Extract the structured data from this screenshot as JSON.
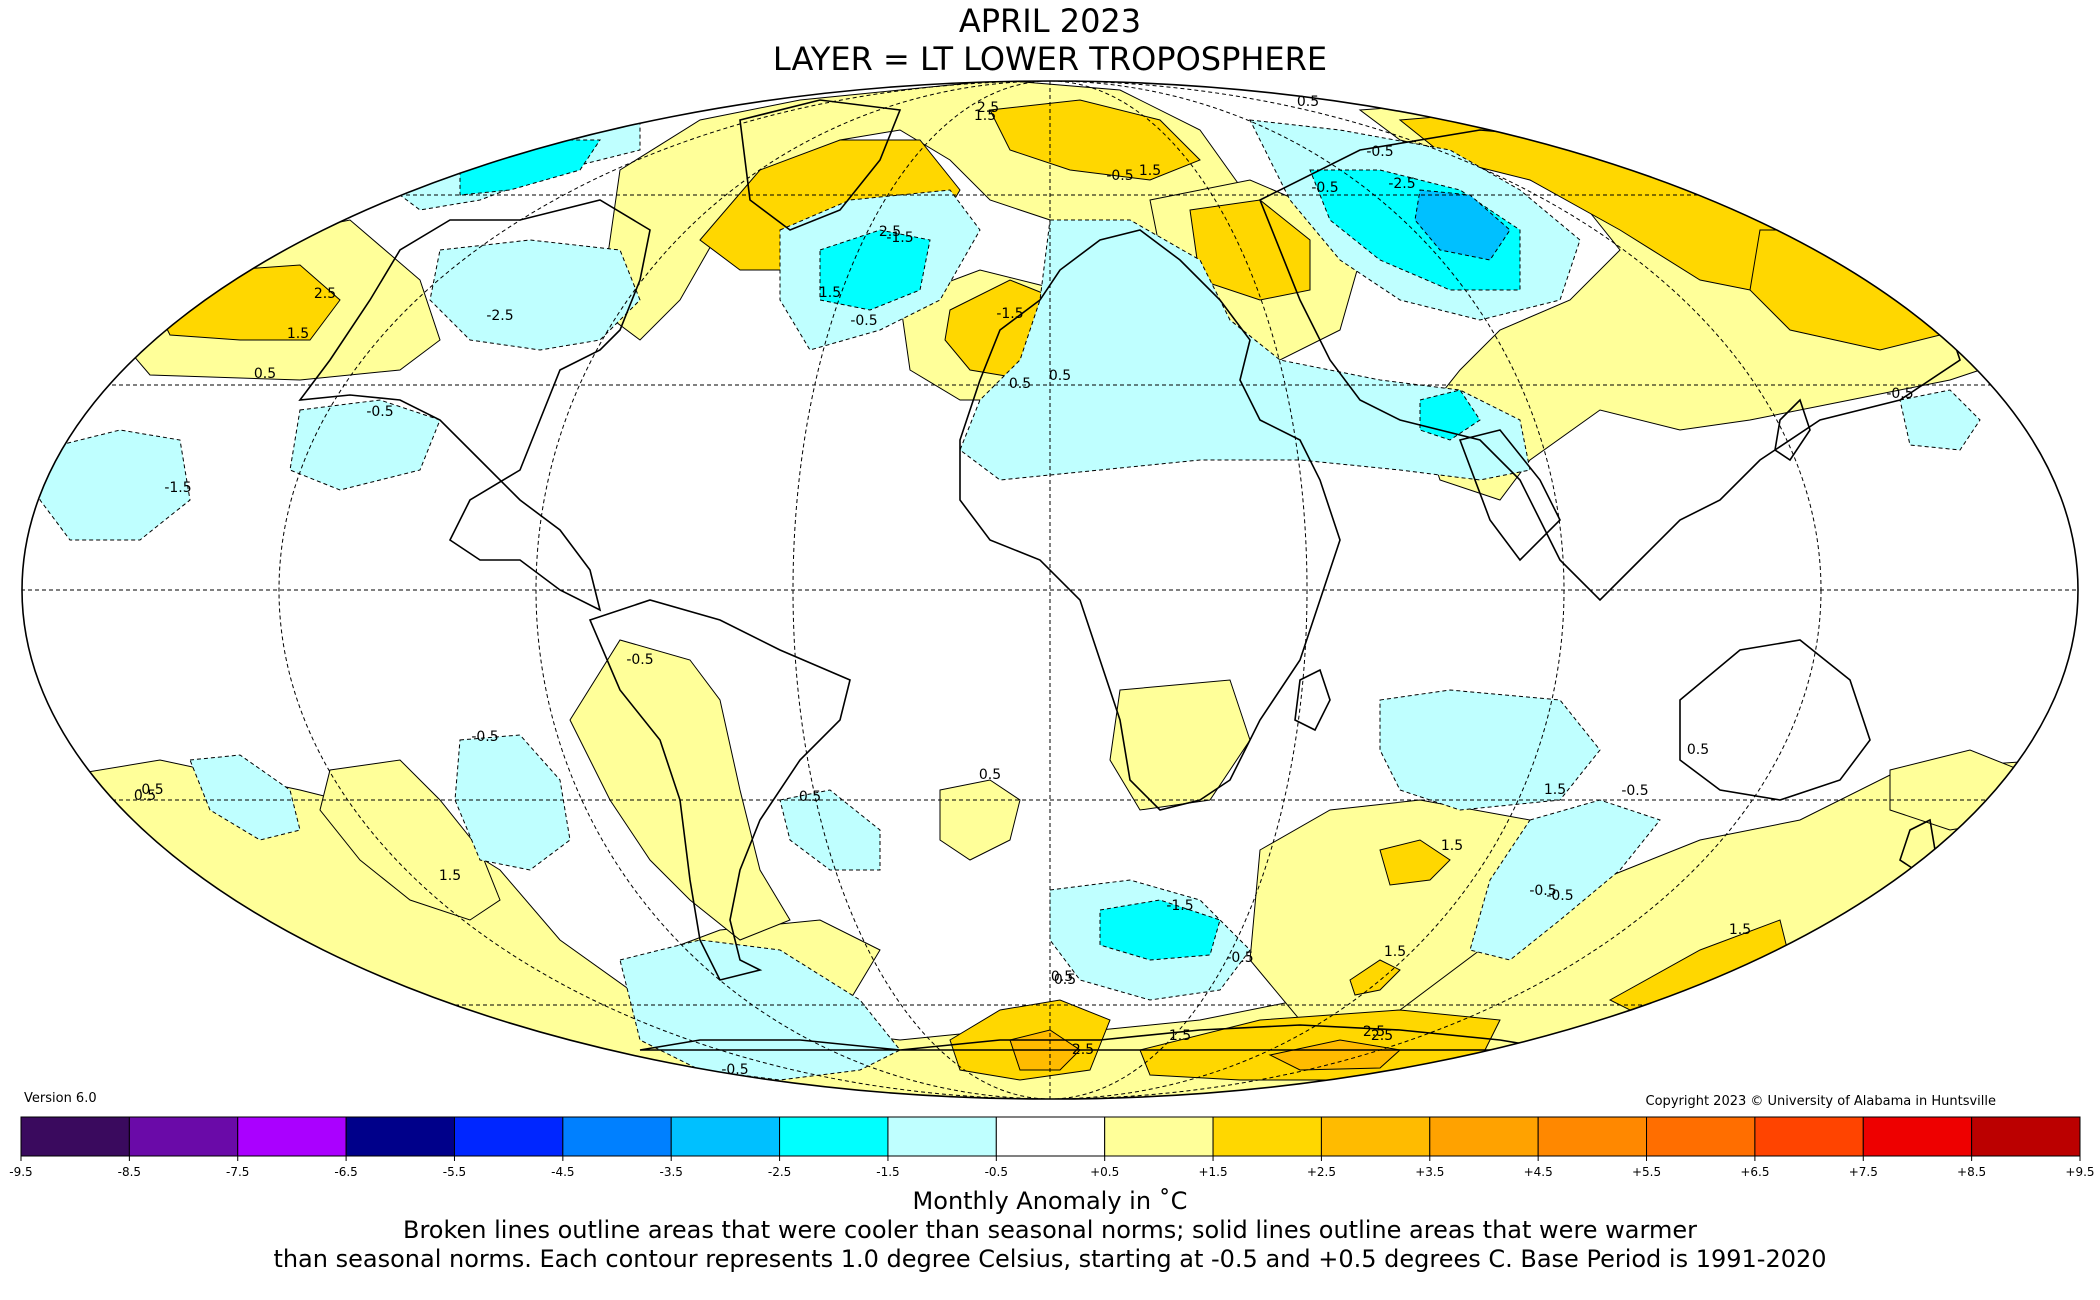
{
  "title": "APRIL 2023",
  "subtitle": "LAYER = LT LOWER TROPOSPHERE",
  "version": "Version 6.0",
  "copyright": "Copyright 2023 © University of Alabama in Huntsville",
  "colorbar": {
    "title": "Monthly Anomaly in ˚C",
    "ticks": [
      "-9.5",
      "-8.5",
      "-7.5",
      "-6.5",
      "-5.5",
      "-4.5",
      "-3.5",
      "-2.5",
      "-1.5",
      "-0.5",
      "+0.5",
      "+1.5",
      "+2.5",
      "+3.5",
      "+4.5",
      "+5.5",
      "+6.5",
      "+7.5",
      "+8.5",
      "+9.5"
    ],
    "colors": [
      "#3a0a5e",
      "#6a0aa8",
      "#aa00ff",
      "#00008a",
      "#0026ff",
      "#0080ff",
      "#00c0ff",
      "#00ffff",
      "#bfffff",
      "#ffffff",
      "#ffff99",
      "#ffd700",
      "#ffbb00",
      "#ffa200",
      "#ff8800",
      "#ff6e00",
      "#ff4400",
      "#ee0000",
      "#bb0000"
    ]
  },
  "caption_line1": "Broken lines outline areas that were cooler than seasonal norms; solid lines outline areas that were warmer",
  "caption_line2": "than seasonal norms. Each contour represents 1.0 degree Celsius, starting at -0.5 and +0.5 degrees C. Base Period is 1991-2020",
  "map": {
    "projection": "Mollweide",
    "palette": {
      "cool1": "#bfffff",
      "cool2": "#00ffff",
      "cool3": "#00c0ff",
      "warm1": "#ffff99",
      "warm2": "#ffd700",
      "warm3": "#ffbb00",
      "warm4": "#ffa200"
    },
    "contour_labels": [
      "2.5",
      "1.5",
      "0.5",
      "-0.5",
      "-1.5",
      "-2.5",
      "1.5",
      "2.5",
      "-0.5",
      "-1.5",
      "2.5",
      "1.5",
      "0.5",
      "-0.5",
      "-0.5",
      "-0.5",
      "0.5",
      "-0.5",
      "-0.5",
      "0.5",
      "-0.5",
      "-0.5",
      "0.5",
      "0.5",
      "1.5",
      "1.5",
      "-1.5",
      "-0.5",
      "0.5",
      "1.5",
      "2.5",
      "2.5",
      "-0.5",
      "-0.5",
      "0.5",
      "1.5",
      "1.5",
      "-0.5",
      "1.5",
      "0.5",
      "-0.5",
      "2.5",
      "1.5",
      "0.5",
      "-2.5",
      "-1.5"
    ]
  }
}
